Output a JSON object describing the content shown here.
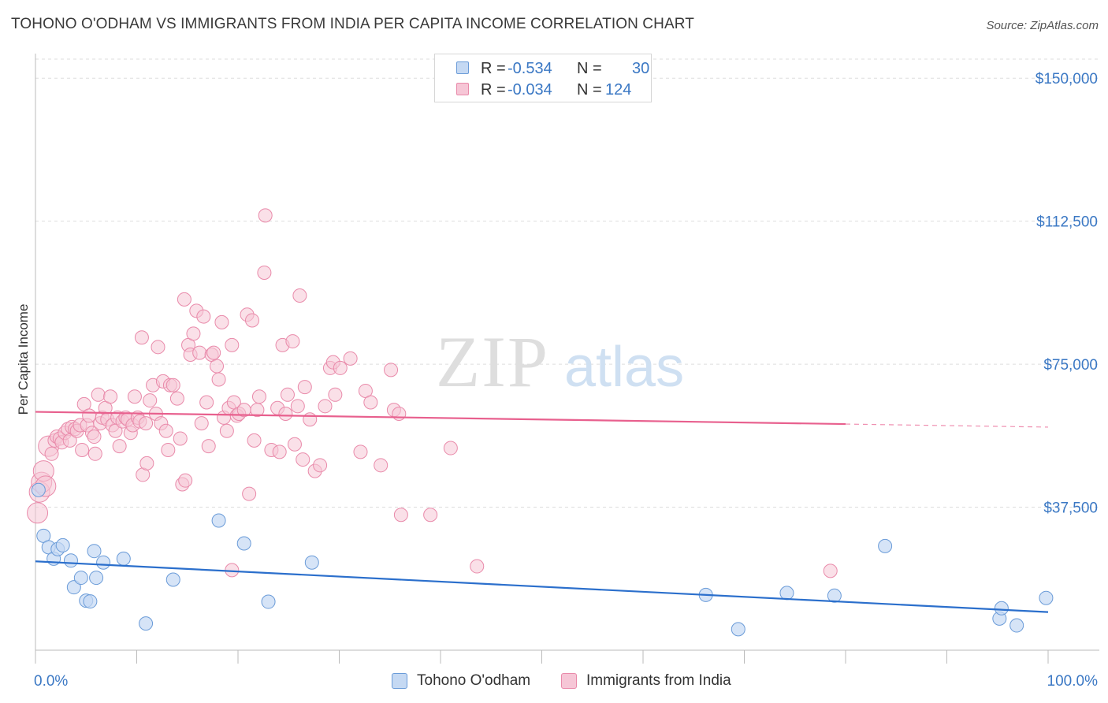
{
  "title": "TOHONO O'ODHAM VS IMMIGRANTS FROM INDIA PER CAPITA INCOME CORRELATION CHART",
  "source": "Source: ZipAtlas.com",
  "watermark": {
    "zip": "ZIP",
    "atlas": "atlas"
  },
  "legend": {
    "r_label": "R =",
    "n_label": "N =",
    "rows": [
      {
        "r": "-0.534",
        "n": "30"
      },
      {
        "r": "-0.034",
        "n": "124"
      }
    ]
  },
  "colors": {
    "blue_fill": "#c5d9f3",
    "blue_stroke": "#6a9bd8",
    "blue_line": "#2b6fcc",
    "pink_fill": "#f6c6d6",
    "pink_stroke": "#e98aaa",
    "pink_line": "#e8608e",
    "tick_text": "#3b78c4",
    "grid": "#dddddd"
  },
  "chart_data": {
    "type": "scatter",
    "title": "TOHONO O'ODHAM VS IMMIGRANTS FROM INDIA PER CAPITA INCOME CORRELATION CHART",
    "xlabel": "",
    "ylabel": "Per Capita Income",
    "xlim": [
      0,
      100
    ],
    "ylim": [
      0,
      155000
    ],
    "x_tick_labels": [
      "0.0%",
      "100.0%"
    ],
    "y_ticks": [
      37500,
      75000,
      112500,
      150000
    ],
    "y_tick_labels": [
      "$37,500",
      "$75,000",
      "$112,500",
      "$150,000"
    ],
    "grid": true,
    "legend_position": "bottom",
    "series": [
      {
        "name": "Tohono O'odham",
        "trend": {
          "x": [
            0,
            100
          ],
          "y": [
            23300,
            10000
          ]
        },
        "points": [
          [
            0.3,
            42000
          ],
          [
            0.8,
            30000
          ],
          [
            1.3,
            27000
          ],
          [
            1.8,
            24000
          ],
          [
            2.2,
            26500
          ],
          [
            2.7,
            27500
          ],
          [
            3.5,
            23500
          ],
          [
            3.8,
            16500
          ],
          [
            4.5,
            19000
          ],
          [
            5.0,
            13000
          ],
          [
            5.4,
            12800
          ],
          [
            5.8,
            26000
          ],
          [
            6.0,
            19000
          ],
          [
            6.7,
            23000
          ],
          [
            8.7,
            24000
          ],
          [
            10.9,
            7000
          ],
          [
            13.6,
            18500
          ],
          [
            18.1,
            34000
          ],
          [
            20.6,
            28000
          ],
          [
            23.0,
            12700
          ],
          [
            27.3,
            23000
          ],
          [
            66.2,
            14500
          ],
          [
            69.4,
            5500
          ],
          [
            74.2,
            15000
          ],
          [
            78.9,
            14300
          ],
          [
            83.9,
            27300
          ],
          [
            95.2,
            8300
          ],
          [
            95.4,
            11000
          ],
          [
            96.9,
            6500
          ],
          [
            99.8,
            13700
          ]
        ]
      },
      {
        "name": "Immigrants from India",
        "trend": {
          "x": [
            0,
            80
          ],
          "y": [
            62500,
            59300
          ]
        },
        "trend_dashed": {
          "x": [
            80,
            100
          ],
          "y": [
            59300,
            58500
          ]
        },
        "points": [
          [
            0.2,
            36000
          ],
          [
            0.4,
            41500
          ],
          [
            0.6,
            44000
          ],
          [
            0.8,
            47000
          ],
          [
            1.0,
            43000
          ],
          [
            1.3,
            53500
          ],
          [
            1.6,
            51500
          ],
          [
            1.9,
            55000
          ],
          [
            2.1,
            56000
          ],
          [
            2.4,
            55500
          ],
          [
            2.6,
            54500
          ],
          [
            2.9,
            57000
          ],
          [
            3.2,
            58000
          ],
          [
            3.4,
            55000
          ],
          [
            3.6,
            58500
          ],
          [
            3.9,
            58000
          ],
          [
            4.1,
            57500
          ],
          [
            4.4,
            59000
          ],
          [
            4.6,
            52500
          ],
          [
            4.8,
            64500
          ],
          [
            5.1,
            59000
          ],
          [
            5.3,
            61500
          ],
          [
            5.6,
            57000
          ],
          [
            5.8,
            56000
          ],
          [
            5.9,
            51500
          ],
          [
            6.2,
            67000
          ],
          [
            6.4,
            59500
          ],
          [
            6.6,
            61000
          ],
          [
            6.9,
            63500
          ],
          [
            7.1,
            60500
          ],
          [
            7.4,
            66500
          ],
          [
            7.6,
            59000
          ],
          [
            7.9,
            57500
          ],
          [
            8.1,
            61000
          ],
          [
            8.3,
            53500
          ],
          [
            8.6,
            60000
          ],
          [
            8.9,
            61000
          ],
          [
            9.1,
            60500
          ],
          [
            9.4,
            57000
          ],
          [
            9.6,
            59000
          ],
          [
            9.8,
            66500
          ],
          [
            10.1,
            61000
          ],
          [
            10.3,
            60000
          ],
          [
            10.6,
            46000
          ],
          [
            10.9,
            59500
          ],
          [
            10.5,
            82000
          ],
          [
            11.0,
            49000
          ],
          [
            11.3,
            65500
          ],
          [
            11.6,
            69500
          ],
          [
            11.9,
            62000
          ],
          [
            12.1,
            79500
          ],
          [
            12.4,
            59500
          ],
          [
            12.6,
            70500
          ],
          [
            12.9,
            57500
          ],
          [
            13.1,
            52500
          ],
          [
            13.3,
            69500
          ],
          [
            13.6,
            69500
          ],
          [
            14.0,
            66000
          ],
          [
            14.3,
            55500
          ],
          [
            14.5,
            43500
          ],
          [
            14.8,
            44500
          ],
          [
            14.7,
            92000
          ],
          [
            15.1,
            80000
          ],
          [
            15.3,
            77500
          ],
          [
            15.6,
            83000
          ],
          [
            15.9,
            89000
          ],
          [
            16.2,
            78000
          ],
          [
            16.4,
            59500
          ],
          [
            16.6,
            87500
          ],
          [
            16.9,
            65000
          ],
          [
            17.1,
            53500
          ],
          [
            17.4,
            77500
          ],
          [
            17.6,
            78000
          ],
          [
            17.9,
            74500
          ],
          [
            18.1,
            71000
          ],
          [
            18.4,
            86000
          ],
          [
            18.6,
            61000
          ],
          [
            18.9,
            57500
          ],
          [
            19.1,
            63500
          ],
          [
            19.4,
            80000
          ],
          [
            19.6,
            65000
          ],
          [
            19.9,
            61500
          ],
          [
            20.1,
            62000
          ],
          [
            20.6,
            63000
          ],
          [
            20.9,
            88000
          ],
          [
            21.1,
            41000
          ],
          [
            21.4,
            86500
          ],
          [
            21.6,
            55000
          ],
          [
            21.9,
            63000
          ],
          [
            22.1,
            66500
          ],
          [
            22.6,
            99000
          ],
          [
            22.7,
            114000
          ],
          [
            23.3,
            52500
          ],
          [
            23.9,
            63500
          ],
          [
            24.1,
            52000
          ],
          [
            24.4,
            80000
          ],
          [
            24.7,
            62000
          ],
          [
            24.9,
            67000
          ],
          [
            25.4,
            81000
          ],
          [
            25.6,
            54000
          ],
          [
            25.9,
            64000
          ],
          [
            26.1,
            93000
          ],
          [
            26.4,
            50000
          ],
          [
            26.6,
            69000
          ],
          [
            27.1,
            60500
          ],
          [
            27.6,
            47000
          ],
          [
            28.1,
            48500
          ],
          [
            28.6,
            64000
          ],
          [
            29.1,
            74000
          ],
          [
            29.4,
            75500
          ],
          [
            29.6,
            67000
          ],
          [
            30.1,
            74000
          ],
          [
            31.1,
            76500
          ],
          [
            32.1,
            52000
          ],
          [
            32.6,
            68000
          ],
          [
            33.1,
            65000
          ],
          [
            34.1,
            48500
          ],
          [
            35.1,
            73500
          ],
          [
            35.4,
            63000
          ],
          [
            35.9,
            62000
          ],
          [
            36.1,
            35500
          ],
          [
            39.0,
            35500
          ],
          [
            41.0,
            53000
          ],
          [
            43.6,
            22000
          ],
          [
            78.5,
            20800
          ],
          [
            19.4,
            21000
          ]
        ]
      }
    ]
  },
  "bottom_legend": [
    "Tohono O'odham",
    "Immigrants from India"
  ]
}
